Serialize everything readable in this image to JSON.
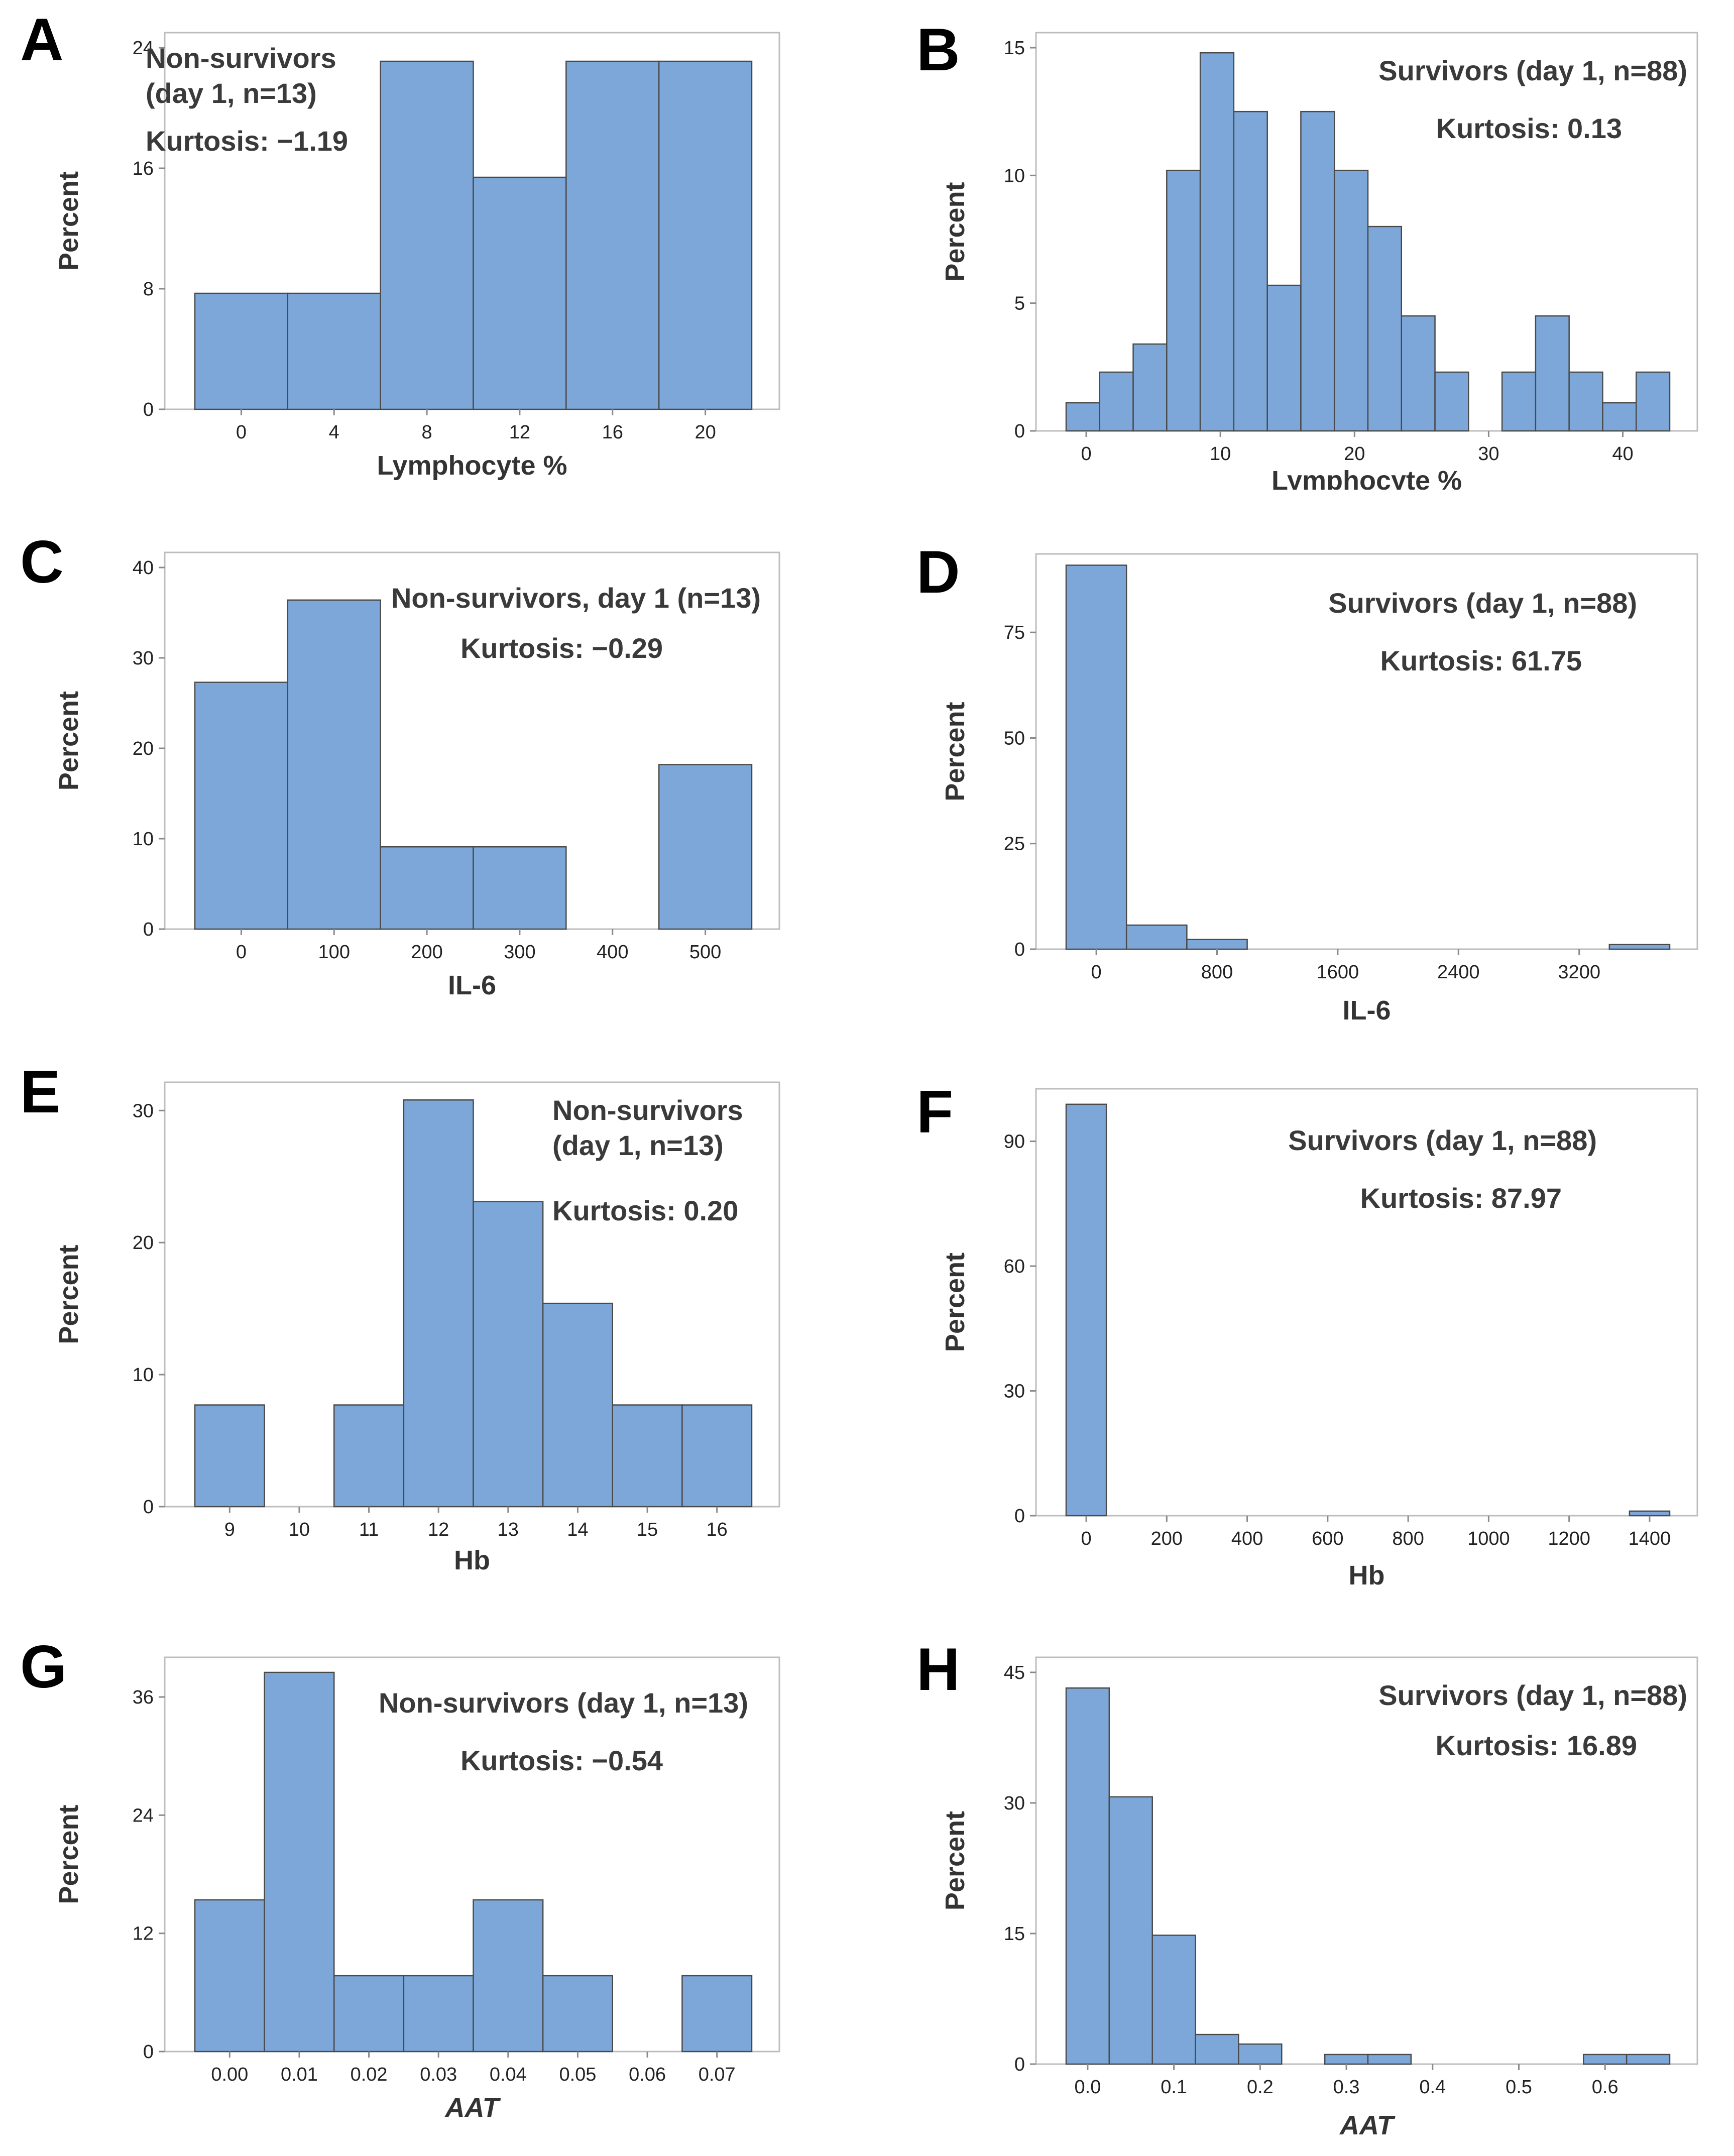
{
  "chart_data": [
    {
      "panel": "A",
      "type": "bar",
      "title_lines": [
        "Non-survivors",
        "(day 1, n=13)"
      ],
      "kurtosis_label": "Kurtosis: −1.19",
      "xlabel": "Lymphocyte %",
      "ylabel": "Percent",
      "xlim": [
        -2,
        22
      ],
      "ylim": [
        0,
        24
      ],
      "xticks": [
        0,
        4,
        8,
        12,
        16,
        20
      ],
      "yticks": [
        0,
        8,
        16,
        24
      ],
      "bin_edges": [
        -2,
        2,
        6,
        10,
        14,
        18,
        22
      ],
      "values": [
        7.7,
        7.7,
        23.1,
        15.4,
        23.1,
        23.1
      ]
    },
    {
      "panel": "B",
      "type": "bar",
      "title_lines": [
        "Survivors (day 1, n=88)"
      ],
      "kurtosis_label": "Kurtosis: 0.13",
      "xlabel": "Lymphocyte %",
      "ylabel": "Percent",
      "xlim": [
        -1.5,
        43.5
      ],
      "ylim": [
        0,
        15
      ],
      "xticks": [
        0,
        10,
        20,
        30,
        40
      ],
      "yticks": [
        0,
        5,
        10,
        15
      ],
      "bin_edges": [
        -1.5,
        1,
        3.5,
        6,
        8.5,
        11,
        13.5,
        16,
        18.5,
        21,
        23.5,
        26,
        28.5,
        31,
        33.5,
        36,
        38.5,
        41,
        43.5
      ],
      "values": [
        1.1,
        2.3,
        3.4,
        10.2,
        14.8,
        12.5,
        5.7,
        12.5,
        10.2,
        8.0,
        4.5,
        2.3,
        0,
        2.3,
        4.5,
        2.3,
        1.1,
        2.3
      ]
    },
    {
      "panel": "C",
      "type": "bar",
      "title_lines": [
        "Non-survivors, day 1 (n=13)"
      ],
      "kurtosis_label": "Kurtosis: −0.29",
      "xlabel": "IL-6",
      "ylabel": "Percent",
      "xlim": [
        -50,
        550
      ],
      "ylim": [
        0,
        40
      ],
      "xticks": [
        0,
        100,
        200,
        300,
        400,
        500
      ],
      "yticks": [
        0,
        10,
        20,
        30,
        40
      ],
      "bin_edges": [
        -50,
        50,
        150,
        250,
        350,
        450,
        550
      ],
      "values": [
        27.3,
        36.4,
        9.1,
        9.1,
        0,
        18.2
      ]
    },
    {
      "panel": "D",
      "type": "bar",
      "title_lines": [
        "Survivors (day 1, n=88)"
      ],
      "kurtosis_label": "Kurtosis: 61.75",
      "xlabel": "IL-6",
      "ylabel": "Percent",
      "xlim": [
        -200,
        3800
      ],
      "ylim": [
        0,
        90
      ],
      "xticks": [
        0,
        800,
        1600,
        2400,
        3200
      ],
      "yticks": [
        0,
        25,
        50,
        75
      ],
      "bin_edges": [
        -200,
        200,
        600,
        1000,
        1400,
        1800,
        2200,
        2600,
        3000,
        3400,
        3800
      ],
      "values": [
        90.9,
        5.7,
        2.3,
        0,
        0,
        0,
        0,
        0,
        0,
        1.1
      ]
    },
    {
      "panel": "E",
      "type": "bar",
      "title_lines": [
        "Non-survivors",
        "(day 1, n=13)"
      ],
      "kurtosis_label": "Kurtosis: 0.20",
      "xlabel": "Hb",
      "ylabel": "Percent",
      "xlim": [
        8.5,
        16.5
      ],
      "ylim": [
        0,
        31
      ],
      "xticks": [
        9,
        10,
        11,
        12,
        13,
        14,
        15,
        16
      ],
      "yticks": [
        0,
        10,
        20,
        30
      ],
      "bin_edges": [
        8.5,
        9.5,
        10.5,
        11.5,
        12.5,
        13.5,
        14.5,
        15.5,
        16.5
      ],
      "values": [
        7.7,
        0,
        7.7,
        30.8,
        23.1,
        15.4,
        7.7,
        7.7
      ]
    },
    {
      "panel": "F",
      "type": "bar",
      "title_lines": [
        "Survivors (day 1, n=88)"
      ],
      "kurtosis_label": "Kurtosis: 87.97",
      "xlabel": "Hb",
      "ylabel": "Percent",
      "xlim": [
        -50,
        1450
      ],
      "ylim": [
        0,
        99
      ],
      "xticks": [
        0,
        200,
        400,
        600,
        800,
        1000,
        1200,
        1400
      ],
      "yticks": [
        0,
        30,
        60,
        90
      ],
      "bin_edges": [
        -50,
        50,
        150,
        250,
        350,
        450,
        550,
        650,
        750,
        850,
        950,
        1050,
        1150,
        1250,
        1350,
        1450
      ],
      "values": [
        98.9,
        0,
        0,
        0,
        0,
        0,
        0,
        0,
        0,
        0,
        0,
        0,
        0,
        0,
        1.1
      ]
    },
    {
      "panel": "G",
      "type": "bar",
      "title_lines": [
        "Non-survivors (day 1, n=13)"
      ],
      "kurtosis_label": "Kurtosis: −0.54",
      "xlabel": "AAT",
      "ylabel": "Percent",
      "xlim": [
        -0.005,
        0.075
      ],
      "ylim": [
        0,
        38.5
      ],
      "xticks": [
        0.0,
        0.01,
        0.02,
        0.03,
        0.04,
        0.05,
        0.06,
        0.07
      ],
      "xtick_labels": [
        "0.00",
        "0.01",
        "0.02",
        "0.03",
        "0.04",
        "0.05",
        "0.06",
        "0.07"
      ],
      "yticks": [
        0,
        12,
        24,
        36
      ],
      "bin_edges": [
        -0.005,
        0.005,
        0.015,
        0.025,
        0.035,
        0.045,
        0.055,
        0.065,
        0.075
      ],
      "values": [
        15.4,
        38.5,
        7.7,
        7.7,
        15.4,
        7.7,
        0,
        7.7
      ]
    },
    {
      "panel": "H",
      "type": "bar",
      "title_lines": [
        "Survivors (day 1, n=88)"
      ],
      "kurtosis_label": "Kurtosis: 16.89",
      "xlabel": "AAT",
      "ylabel": "Percent",
      "xlim": [
        -0.025,
        0.675
      ],
      "ylim": [
        0,
        45
      ],
      "xticks": [
        0.0,
        0.1,
        0.2,
        0.3,
        0.4,
        0.5,
        0.6
      ],
      "xtick_labels": [
        "0.0",
        "0.1",
        "0.2",
        "0.3",
        "0.4",
        "0.5",
        "0.6"
      ],
      "yticks": [
        0,
        15,
        30,
        45
      ],
      "bin_edges": [
        -0.025,
        0.025,
        0.075,
        0.125,
        0.175,
        0.225,
        0.275,
        0.325,
        0.375,
        0.425,
        0.475,
        0.525,
        0.575,
        0.625,
        0.675
      ],
      "values": [
        43.2,
        30.7,
        14.8,
        3.4,
        2.3,
        0,
        1.1,
        1.1,
        0,
        0,
        0,
        0,
        1.1,
        1.1
      ]
    }
  ]
}
